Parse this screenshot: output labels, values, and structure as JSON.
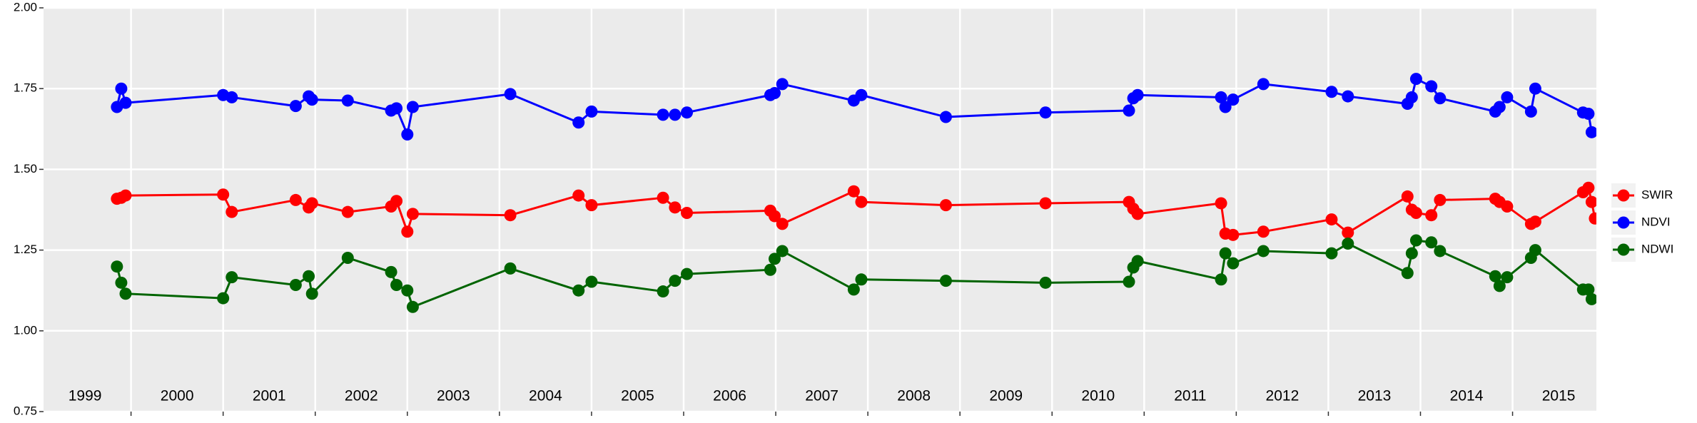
{
  "chart_data": {
    "type": "line",
    "xlim": [
      1999.05,
      2015.91
    ],
    "xticks": [
      2000,
      2001,
      2002,
      2003,
      2004,
      2005,
      2006,
      2007,
      2008,
      2009,
      2010,
      2011,
      2012,
      2013,
      2014,
      2015
    ],
    "year_labels": [
      {
        "value": 1999.5,
        "label": "1999"
      },
      {
        "value": 2000.5,
        "label": "2000"
      },
      {
        "value": 2001.5,
        "label": "2001"
      },
      {
        "value": 2002.5,
        "label": "2002"
      },
      {
        "value": 2003.5,
        "label": "2003"
      },
      {
        "value": 2004.5,
        "label": "2004"
      },
      {
        "value": 2005.5,
        "label": "2005"
      },
      {
        "value": 2006.5,
        "label": "2006"
      },
      {
        "value": 2007.5,
        "label": "2007"
      },
      {
        "value": 2008.5,
        "label": "2008"
      },
      {
        "value": 2009.5,
        "label": "2009"
      },
      {
        "value": 2010.5,
        "label": "2010"
      },
      {
        "value": 2011.5,
        "label": "2011"
      },
      {
        "value": 2012.5,
        "label": "2012"
      },
      {
        "value": 2013.5,
        "label": "2013"
      },
      {
        "value": 2014.5,
        "label": "2014"
      },
      {
        "value": 2015.5,
        "label": "2015"
      }
    ],
    "ylim": [
      0.75,
      2.0
    ],
    "yticks": [
      {
        "value": 0.75,
        "label": "0.75"
      },
      {
        "value": 1.0,
        "label": "1.00"
      },
      {
        "value": 1.25,
        "label": "1.25"
      },
      {
        "value": 1.5,
        "label": "1.50"
      },
      {
        "value": 1.75,
        "label": "1.75"
      },
      {
        "value": 2.0,
        "label": "2.00"
      }
    ],
    "grid": true,
    "legend_position": "right",
    "series": [
      {
        "name": "SWIR",
        "color": "#ff0000",
        "x": [
          1999.847,
          1999.894,
          1999.941,
          2001.0,
          2001.094,
          2001.788,
          2001.929,
          2001.965,
          2002.353,
          2002.824,
          2002.882,
          2003.0,
          2003.059,
          2004.118,
          2004.859,
          2005.0,
          2005.776,
          2005.906,
          2006.035,
          2006.941,
          2006.988,
          2007.071,
          2007.847,
          2007.929,
          2008.847,
          2009.929,
          2010.835,
          2010.882,
          2010.929,
          2011.835,
          2011.882,
          2011.965,
          2012.294,
          2013.035,
          2013.212,
          2013.859,
          2013.906,
          2013.953,
          2014.118,
          2014.212,
          2014.812,
          2014.859,
          2014.941,
          2015.2,
          2015.247,
          2015.765,
          2015.824,
          2015.859,
          2015.894
        ],
        "values": [
          1.409,
          1.412,
          1.419,
          1.422,
          1.368,
          1.405,
          1.382,
          1.395,
          1.368,
          1.385,
          1.402,
          1.307,
          1.362,
          1.358,
          1.419,
          1.389,
          1.412,
          1.382,
          1.365,
          1.372,
          1.355,
          1.331,
          1.432,
          1.399,
          1.389,
          1.395,
          1.399,
          1.378,
          1.362,
          1.395,
          1.301,
          1.297,
          1.307,
          1.345,
          1.304,
          1.416,
          1.375,
          1.365,
          1.358,
          1.405,
          1.409,
          1.399,
          1.385,
          1.331,
          1.338,
          1.429,
          1.443,
          1.399,
          1.348
        ]
      },
      {
        "name": "NDVI",
        "color": "#0000ff",
        "x": [
          1999.847,
          1999.894,
          1999.941,
          2001.0,
          2001.094,
          2001.788,
          2001.929,
          2001.965,
          2002.353,
          2002.824,
          2002.882,
          2003.0,
          2003.059,
          2004.118,
          2004.859,
          2005.0,
          2005.776,
          2005.906,
          2006.035,
          2006.941,
          2006.988,
          2007.071,
          2007.847,
          2007.929,
          2008.847,
          2009.929,
          2010.835,
          2010.882,
          2010.929,
          2011.835,
          2011.882,
          2011.965,
          2012.294,
          2013.035,
          2013.212,
          2013.859,
          2013.906,
          2013.953,
          2014.118,
          2014.212,
          2014.812,
          2014.859,
          2014.941,
          2015.2,
          2015.247,
          2015.765,
          2015.824,
          2015.859
        ],
        "values": [
          1.693,
          1.75,
          1.706,
          1.73,
          1.723,
          1.696,
          1.726,
          1.716,
          1.713,
          1.682,
          1.689,
          1.608,
          1.693,
          1.733,
          1.645,
          1.679,
          1.669,
          1.669,
          1.676,
          1.73,
          1.736,
          1.764,
          1.713,
          1.73,
          1.662,
          1.676,
          1.682,
          1.72,
          1.73,
          1.723,
          1.693,
          1.716,
          1.764,
          1.74,
          1.726,
          1.703,
          1.723,
          1.78,
          1.757,
          1.72,
          1.679,
          1.693,
          1.723,
          1.679,
          1.75,
          1.676,
          1.672,
          1.615
        ]
      },
      {
        "name": "NDWI",
        "color": "#006400",
        "x": [
          1999.847,
          1999.894,
          1999.941,
          2001.0,
          2001.094,
          2001.788,
          2001.929,
          2001.965,
          2002.353,
          2002.824,
          2002.882,
          2003.0,
          2003.059,
          2004.118,
          2004.859,
          2005.0,
          2005.776,
          2005.906,
          2006.035,
          2006.941,
          2006.988,
          2007.071,
          2007.847,
          2007.929,
          2008.847,
          2009.929,
          2010.835,
          2010.882,
          2010.929,
          2011.835,
          2011.882,
          2011.965,
          2012.294,
          2013.035,
          2013.212,
          2013.859,
          2013.906,
          2013.953,
          2014.118,
          2014.212,
          2014.812,
          2014.859,
          2014.941,
          2015.2,
          2015.247,
          2015.765,
          2015.824,
          2015.859
        ],
        "values": [
          1.199,
          1.149,
          1.115,
          1.101,
          1.166,
          1.142,
          1.169,
          1.115,
          1.226,
          1.182,
          1.142,
          1.125,
          1.074,
          1.193,
          1.125,
          1.152,
          1.122,
          1.155,
          1.176,
          1.189,
          1.223,
          1.247,
          1.128,
          1.159,
          1.155,
          1.149,
          1.152,
          1.196,
          1.216,
          1.159,
          1.24,
          1.209,
          1.247,
          1.24,
          1.27,
          1.179,
          1.24,
          1.28,
          1.274,
          1.247,
          1.169,
          1.139,
          1.166,
          1.226,
          1.25,
          1.128,
          1.128,
          1.098
        ]
      }
    ]
  }
}
